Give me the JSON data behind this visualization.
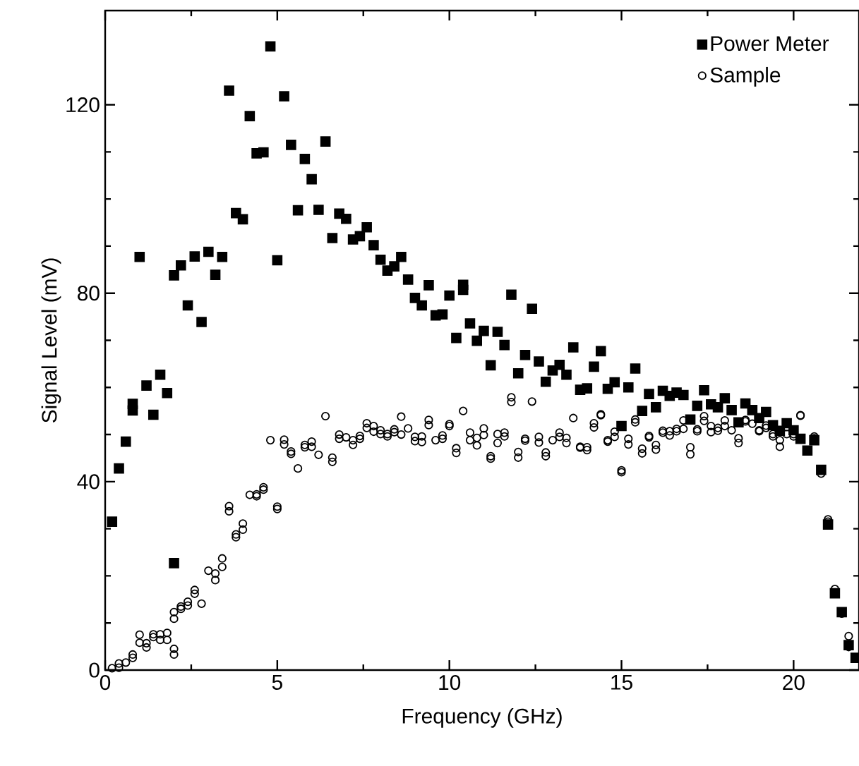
{
  "chart_data": {
    "type": "scatter",
    "xlabel": "Frequency (GHz)",
    "ylabel": "Signal Level (mV)",
    "xlim": [
      0,
      21.9
    ],
    "ylim": [
      0,
      140
    ],
    "xticks": [
      0,
      5,
      10,
      15,
      20
    ],
    "yticks": [
      0,
      40,
      80,
      120
    ],
    "grid": false,
    "legend": "top right",
    "series": [
      {
        "name": "Power Meter",
        "color": "#000000",
        "marker": "square",
        "x": [
          0.2,
          0.4,
          0.6,
          0.8,
          0.8,
          1.0,
          1.2,
          1.4,
          1.6,
          1.8,
          2.0,
          2.0,
          2.2,
          2.4,
          2.6,
          2.8,
          3.0,
          3.2,
          3.4,
          3.6,
          3.8,
          4.0,
          4.2,
          4.4,
          4.6,
          4.8,
          5.0,
          5.2,
          5.4,
          5.6,
          5.8,
          6.0,
          6.2,
          6.4,
          6.6,
          6.8,
          7.0,
          7.2,
          7.4,
          7.6,
          7.8,
          8.0,
          8.2,
          8.4,
          8.6,
          8.8,
          9.0,
          9.2,
          9.4,
          9.6,
          9.8,
          10.0,
          10.2,
          10.4,
          10.4,
          10.6,
          10.8,
          11.0,
          11.2,
          11.4,
          11.6,
          11.8,
          12.0,
          12.2,
          12.4,
          12.6,
          12.8,
          13.0,
          13.2,
          13.4,
          13.6,
          13.8,
          14.0,
          14.2,
          14.4,
          14.6,
          14.8,
          15.0,
          15.2,
          15.4,
          15.6,
          15.8,
          16.0,
          16.2,
          16.4,
          16.6,
          16.8,
          17.0,
          17.2,
          17.4,
          17.6,
          17.8,
          18.0,
          18.2,
          18.4,
          18.6,
          18.8,
          19.0,
          19.2,
          19.4,
          19.6,
          19.8,
          20.0,
          20.2,
          20.4,
          20.6,
          20.8,
          21.0,
          21.2,
          21.4,
          21.6,
          21.8
        ],
        "values": [
          31.5,
          42.8,
          48.5,
          56.5,
          55.1,
          87.7,
          60.4,
          54.2,
          62.7,
          58.8,
          83.8,
          22.7,
          85.9,
          77.4,
          87.8,
          73.9,
          88.8,
          83.9,
          87.7,
          123.0,
          97.0,
          95.7,
          117.6,
          109.7,
          109.9,
          132.4,
          87.0,
          121.8,
          111.5,
          97.6,
          108.5,
          104.2,
          97.7,
          112.2,
          91.7,
          96.9,
          95.8,
          91.4,
          92.1,
          94.0,
          90.2,
          87.1,
          84.8,
          85.7,
          87.7,
          82.9,
          79.0,
          77.4,
          81.7,
          75.3,
          75.5,
          79.5,
          70.5,
          81.8,
          80.7,
          73.6,
          69.9,
          72.0,
          64.7,
          71.8,
          69.0,
          79.7,
          63.0,
          66.9,
          76.7,
          65.5,
          61.2,
          63.6,
          64.8,
          62.7,
          68.5,
          59.5,
          59.8,
          64.4,
          67.7,
          59.7,
          61.1,
          51.8,
          60.0,
          64.0,
          55.0,
          58.6,
          55.8,
          59.3,
          58.2,
          58.9,
          58.4,
          53.2,
          56.1,
          59.4,
          56.4,
          55.8,
          57.7,
          55.2,
          52.6,
          56.6,
          55.2,
          53.5,
          54.8,
          52.0,
          50.8,
          52.4,
          50.9,
          49.1,
          46.6,
          48.8,
          42.5,
          30.9,
          16.3,
          12.3,
          5.3,
          2.6
        ]
      },
      {
        "name": "Sample",
        "color": "#000000",
        "marker": "circle",
        "x": [
          0.2,
          0.4,
          0.4,
          0.6,
          0.8,
          0.8,
          1.0,
          1.0,
          1.2,
          1.2,
          1.4,
          1.4,
          1.6,
          1.6,
          1.8,
          1.8,
          2.0,
          2.0,
          2.0,
          2.0,
          2.2,
          2.2,
          2.4,
          2.4,
          2.6,
          2.6,
          2.8,
          3.0,
          3.2,
          3.2,
          3.4,
          3.4,
          3.6,
          3.6,
          3.8,
          3.8,
          4.0,
          4.0,
          4.2,
          4.4,
          4.4,
          4.6,
          4.6,
          4.8,
          5.0,
          5.0,
          5.2,
          5.2,
          5.4,
          5.4,
          5.6,
          5.8,
          5.8,
          6.0,
          6.0,
          6.2,
          6.4,
          6.6,
          6.6,
          6.8,
          6.8,
          7.0,
          7.2,
          7.2,
          7.4,
          7.4,
          7.6,
          7.6,
          7.8,
          7.8,
          8.0,
          8.0,
          8.2,
          8.2,
          8.4,
          8.4,
          8.6,
          8.6,
          8.8,
          9.0,
          9.0,
          9.2,
          9.2,
          9.4,
          9.4,
          9.6,
          9.8,
          9.8,
          10.0,
          10.0,
          10.2,
          10.2,
          10.4,
          10.6,
          10.6,
          10.8,
          10.8,
          11.0,
          11.0,
          11.2,
          11.2,
          11.4,
          11.4,
          11.6,
          11.6,
          11.8,
          11.8,
          12.0,
          12.0,
          12.2,
          12.2,
          12.4,
          12.6,
          12.6,
          12.8,
          12.8,
          13.0,
          13.2,
          13.2,
          13.4,
          13.4,
          13.6,
          13.8,
          13.8,
          14.0,
          14.0,
          14.2,
          14.2,
          14.4,
          14.4,
          14.6,
          14.6,
          14.8,
          14.8,
          15.0,
          15.0,
          15.2,
          15.2,
          15.4,
          15.4,
          15.6,
          15.6,
          15.8,
          15.8,
          16.0,
          16.0,
          16.2,
          16.2,
          16.4,
          16.4,
          16.6,
          16.6,
          16.8,
          16.8,
          17.0,
          17.0,
          17.2,
          17.2,
          17.4,
          17.4,
          17.6,
          17.6,
          17.8,
          17.8,
          18.0,
          18.0,
          18.2,
          18.4,
          18.4,
          18.6,
          18.6,
          18.8,
          19.0,
          19.0,
          19.2,
          19.2,
          19.4,
          19.4,
          19.6,
          19.6,
          19.8,
          19.8,
          20.0,
          20.0,
          20.2,
          20.2,
          20.6,
          20.6,
          20.8,
          21.0,
          21.0,
          21.2,
          21.4,
          21.6,
          21.6
        ],
        "values": [
          0.4,
          1.4,
          0.5,
          1.6,
          3.3,
          2.6,
          7.5,
          5.8,
          5.7,
          4.8,
          7.6,
          7.0,
          7.6,
          6.4,
          7.9,
          6.4,
          4.5,
          3.3,
          12.3,
          10.9,
          13.5,
          13.0,
          14.5,
          13.7,
          17.0,
          16.2,
          14.1,
          21.1,
          20.5,
          19.1,
          23.7,
          21.9,
          34.8,
          33.7,
          28.8,
          28.2,
          31.1,
          29.8,
          37.2,
          37.3,
          36.9,
          38.8,
          38.3,
          48.8,
          34.7,
          34.2,
          48.9,
          47.9,
          46.4,
          45.9,
          42.8,
          47.8,
          47.3,
          48.5,
          47.4,
          45.7,
          53.9,
          45.1,
          44.2,
          50.0,
          49.1,
          49.4,
          48.8,
          47.8,
          49.7,
          49.1,
          52.4,
          51.4,
          51.8,
          50.6,
          50.9,
          50.1,
          50.1,
          49.6,
          51.1,
          50.5,
          53.8,
          50.0,
          51.3,
          49.5,
          48.6,
          49.6,
          48.4,
          53.1,
          52.0,
          48.8,
          49.8,
          49.1,
          52.2,
          51.8,
          47.1,
          46.1,
          55.0,
          50.4,
          48.8,
          49.3,
          47.7,
          51.3,
          49.9,
          45.4,
          44.9,
          50.1,
          48.2,
          50.4,
          49.6,
          57.9,
          56.9,
          46.3,
          45.1,
          49.1,
          48.7,
          57.0,
          49.5,
          48.3,
          46.2,
          45.4,
          48.8,
          50.4,
          49.5,
          49.3,
          48.2,
          53.5,
          47.4,
          47.2,
          47.3,
          46.7,
          52.4,
          51.5,
          54.3,
          54.1,
          48.8,
          48.5,
          50.6,
          49.5,
          42.4,
          42.0,
          49.1,
          47.9,
          53.2,
          52.6,
          47.0,
          46.0,
          49.7,
          49.4,
          47.8,
          46.8,
          50.8,
          50.4,
          50.7,
          49.8,
          51.2,
          50.7,
          53.0,
          51.2,
          47.3,
          45.8,
          51.1,
          50.7,
          53.9,
          52.9,
          51.8,
          50.5,
          51.4,
          50.8,
          53.0,
          51.8,
          50.9,
          49.2,
          48.2,
          53.1,
          52.8,
          52.3,
          50.9,
          50.7,
          51.9,
          51.4,
          50.1,
          49.6,
          48.8,
          47.4,
          51.6,
          50.1,
          50.1,
          49.6,
          54.1,
          54.0,
          49.6,
          49.2,
          41.7,
          32.0,
          31.5,
          17.2,
          12.0,
          7.2,
          4.9
        ]
      }
    ]
  }
}
